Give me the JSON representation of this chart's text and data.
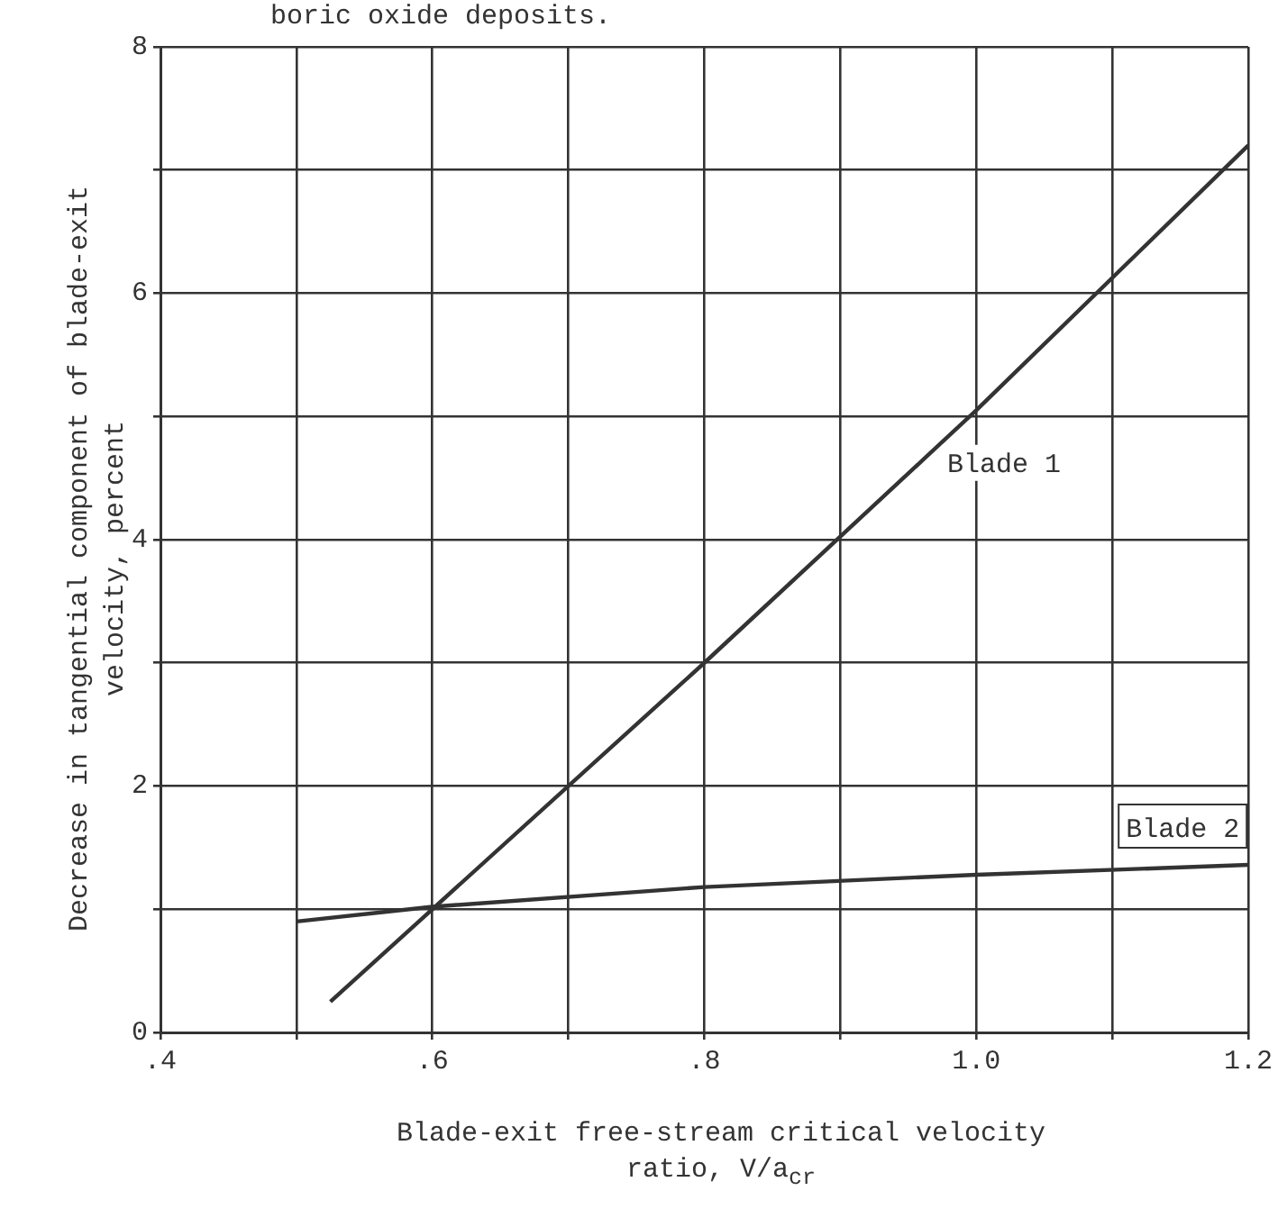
{
  "chart_data": {
    "type": "line",
    "annotations": [
      "boric oxide deposits."
    ],
    "xlabel": "Blade-exit free-stream critical velocity\nratio, V/a$_{cr}$",
    "ylabel": "Decrease in tangential component of blade-exit\nvelocity, percent",
    "series": [
      {
        "name": "Blade 1",
        "color": "#333333",
        "x": [
          0.525,
          0.6,
          0.8,
          1.0,
          1.2
        ],
        "values": [
          0.25,
          1.0,
          3.0,
          5.05,
          7.2
        ]
      },
      {
        "name": "Blade 2",
        "color": "#333333",
        "x": [
          0.5,
          0.6,
          0.8,
          1.0,
          1.2
        ],
        "values": [
          0.9,
          1.02,
          1.18,
          1.28,
          1.36
        ]
      }
    ],
    "xlim": [
      0.4,
      1.2
    ],
    "ylim": [
      0,
      8
    ],
    "xticks": [
      {
        "value": 0.4,
        "label": ".4"
      },
      {
        "value": 0.5,
        "label": null
      },
      {
        "value": 0.6,
        "label": ".6"
      },
      {
        "value": 0.7,
        "label": null
      },
      {
        "value": 0.8,
        "label": ".8"
      },
      {
        "value": 0.9,
        "label": null
      },
      {
        "value": 1.0,
        "label": "1.0"
      },
      {
        "value": 1.1,
        "label": null
      },
      {
        "value": 1.2,
        "label": "1.2"
      }
    ],
    "yticks": [
      0,
      {
        "value": 1,
        "label": null
      },
      2,
      {
        "value": 3,
        "label": null
      },
      4,
      {
        "value": 5,
        "label": null
      },
      6,
      {
        "value": 7,
        "label": null
      },
      8
    ],
    "grid": true,
    "legend": false,
    "marker": "none",
    "line_style": "solid"
  }
}
